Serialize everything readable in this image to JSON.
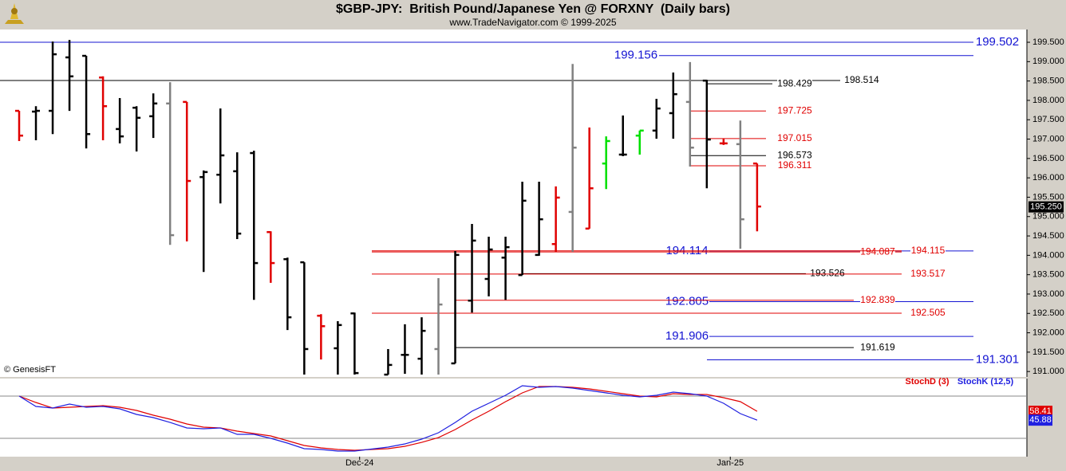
{
  "chart_data": [
    {
      "type": "ohlc",
      "title": "$GBP-JPY:  British Pound/Japanese Yen @ FORXNY  (Daily bars)",
      "subtitle": "www.TradeNavigator.com © 1999-2025",
      "annotation": "© GenesisFT",
      "x": [
        0,
        1,
        2,
        3,
        4,
        5,
        6,
        7,
        8,
        9,
        10,
        11,
        12,
        13,
        14,
        15,
        16,
        17,
        18,
        19,
        20,
        22,
        23,
        24,
        25,
        26,
        27,
        28,
        29,
        30,
        31,
        32,
        33,
        34,
        35,
        36,
        37,
        38,
        39,
        40,
        41,
        42,
        43,
        44
      ],
      "open": [
        197.73,
        197.71,
        197.73,
        199.11,
        199.15,
        198.59,
        197.26,
        197.81,
        197.59,
        197.92,
        197.96,
        196.02,
        196.08,
        196.17,
        196.64,
        194.6,
        193.9,
        193.82,
        192.44,
        191.6,
        192.5,
        190.92,
        191.43,
        191.33,
        191.58,
        191.21,
        192.83,
        193.39,
        193.94,
        193.49,
        194.01,
        194.29,
        195.12,
        194.69,
        196.37,
        196.6,
        197.09,
        197.22,
        197.67,
        197.96,
        198.51,
        196.89,
        196.87,
        196.37
      ],
      "high": [
        197.73,
        197.85,
        199.52,
        199.56,
        199.15,
        198.62,
        198.06,
        197.85,
        198.18,
        198.47,
        197.96,
        196.19,
        197.79,
        196.66,
        196.7,
        194.62,
        193.94,
        193.82,
        192.48,
        192.3,
        192.52,
        191.58,
        192.22,
        192.4,
        193.41,
        194.11,
        194.81,
        194.48,
        194.48,
        195.9,
        195.9,
        195.78,
        198.94,
        197.3,
        197.07,
        197.61,
        197.22,
        198.04,
        198.72,
        198.99,
        198.53,
        197.01,
        197.48,
        196.37
      ],
      "low": [
        196.95,
        196.97,
        197.13,
        197.73,
        196.76,
        196.97,
        196.89,
        196.68,
        197.03,
        194.27,
        194.36,
        193.57,
        195.34,
        194.42,
        192.85,
        193.29,
        192.07,
        190.92,
        191.31,
        190.92,
        190.92,
        190.92,
        190.94,
        190.92,
        190.92,
        191.21,
        192.52,
        192.94,
        192.85,
        193.49,
        193.99,
        194.09,
        194.09,
        194.69,
        195.71,
        196.56,
        196.6,
        197.01,
        197.01,
        196.29,
        195.73,
        196.85,
        194.17,
        194.62
      ],
      "close": [
        197.09,
        197.73,
        199.19,
        198.62,
        197.13,
        197.85,
        197.07,
        197.55,
        197.92,
        194.52,
        195.92,
        196.15,
        196.58,
        194.56,
        193.8,
        193.8,
        192.4,
        191.58,
        192.17,
        192.2,
        190.96,
        191.17,
        191.43,
        192.05,
        192.73,
        194.01,
        194.38,
        194.15,
        194.21,
        195.41,
        194.93,
        195.49,
        196.78,
        195.73,
        196.95,
        196.6,
        197.22,
        197.79,
        198.16,
        196.78,
        196.99,
        196.89,
        194.93,
        195.26
      ],
      "colors": [
        "#e00000",
        "#000000",
        "#000000",
        "#000000",
        "#000000",
        "#e00000",
        "#000000",
        "#000000",
        "#000000",
        "#808080",
        "#e00000",
        "#000000",
        "#000000",
        "#000000",
        "#000000",
        "#e00000",
        "#000000",
        "#000000",
        "#e00000",
        "#000000",
        "#000000",
        "#000000",
        "#000000",
        "#000000",
        "#808080",
        "#000000",
        "#000000",
        "#000000",
        "#000000",
        "#000000",
        "#000000",
        "#e00000",
        "#808080",
        "#e00000",
        "#00e000",
        "#000000",
        "#00e000",
        "#000000",
        "#000000",
        "#808080",
        "#000000",
        "#e00000",
        "#808080",
        "#e00000"
      ],
      "xlim": [
        -1.142,
        60.086
      ],
      "ylim": [
        190.88,
        199.83
      ],
      "yticks": [
        {
          "value": 191,
          "label": "191.000"
        },
        {
          "value": 191.5,
          "label": "191.500"
        },
        {
          "value": 192,
          "label": "192.000"
        },
        {
          "value": 192.5,
          "label": "192.500"
        },
        {
          "value": 193,
          "label": "193.000"
        },
        {
          "value": 193.5,
          "label": "193.500"
        },
        {
          "value": 194,
          "label": "194.000"
        },
        {
          "value": 194.5,
          "label": "194.500"
        },
        {
          "value": 195,
          "label": "195.000"
        },
        {
          "value": 195.5,
          "label": "195.500"
        },
        {
          "value": 196,
          "label": "196.000"
        },
        {
          "value": 196.5,
          "label": "196.500"
        },
        {
          "value": 197,
          "label": "197.000"
        },
        {
          "value": 197.5,
          "label": "197.500"
        },
        {
          "value": 198,
          "label": "198.000"
        },
        {
          "value": 198.5,
          "label": "198.500"
        },
        {
          "value": 199,
          "label": "199.000"
        },
        {
          "value": 199.5,
          "label": "199.500"
        }
      ],
      "last_price": {
        "value": 195.25,
        "label": "195.250"
      },
      "levels": [
        {
          "value": 199.502,
          "color": "#1414d2"
        },
        {
          "value": 199.156,
          "color": "#1414d2"
        },
        {
          "value": 198.514,
          "color": "#000000"
        },
        {
          "value": 198.429,
          "color": "#000000"
        },
        {
          "value": 197.725,
          "color": "#e00000"
        },
        {
          "value": 197.015,
          "color": "#e00000"
        },
        {
          "value": 196.573,
          "color": "#000000"
        },
        {
          "value": 196.311,
          "color": "#e00000"
        },
        {
          "value": 194.114,
          "color": "#1414d2"
        },
        {
          "value": 194.087,
          "color": "#e00000"
        },
        {
          "value": 194.115,
          "color": "#e00000"
        },
        {
          "value": 193.526,
          "color": "#000000"
        },
        {
          "value": 193.517,
          "color": "#e00000"
        },
        {
          "value": 192.805,
          "color": "#1414d2"
        },
        {
          "value": 192.839,
          "color": "#e00000"
        },
        {
          "value": 192.505,
          "color": "#e00000"
        },
        {
          "value": 191.906,
          "color": "#1414d2"
        },
        {
          "value": 191.619,
          "color": "#000000"
        },
        {
          "value": 191.301,
          "color": "#1414d2"
        }
      ]
    },
    {
      "type": "line",
      "x": [
        0,
        1,
        2,
        3,
        4,
        5,
        6,
        7,
        8,
        9,
        10,
        11,
        12,
        13,
        14,
        15,
        16,
        17,
        18,
        19,
        20,
        22,
        23,
        24,
        25,
        26,
        27,
        28,
        29,
        30,
        31,
        32,
        33,
        34,
        35,
        36,
        37,
        38,
        39,
        40,
        41,
        42,
        43,
        44
      ],
      "xlim": [
        -1.142,
        60.086
      ],
      "ylim": [
        -6,
        104.9
      ],
      "hlines": [
        80,
        20
      ],
      "xticks": [
        {
          "value": 20.3,
          "label": "Dec-24"
        },
        {
          "value": 42.4,
          "label": "Jan-25"
        }
      ],
      "series": [
        {
          "name": "StochD (3)",
          "color": "#e00000",
          "values": [
            80.0,
            70.9,
            63.0,
            64.2,
            65.3,
            66.4,
            64.2,
            59.6,
            52.8,
            47.2,
            40.4,
            35.9,
            34.7,
            30.2,
            26.8,
            23.4,
            16.6,
            9.8,
            6.4,
            4.2,
            3.1,
            5.3,
            8.7,
            14.3,
            21.1,
            32.5,
            46.0,
            58.5,
            72.1,
            84.5,
            93.6,
            93.6,
            92.5,
            90.2,
            86.8,
            83.4,
            80.0,
            78.9,
            83.4,
            82.3,
            82.3,
            77.7,
            72.1,
            58.41
          ]
        },
        {
          "name": "StochK (12,5)",
          "color": "#2020e0",
          "values": [
            80.0,
            65.3,
            63.0,
            68.7,
            64.2,
            65.3,
            61.9,
            54.0,
            49.4,
            42.6,
            34.7,
            33.6,
            34.7,
            25.7,
            25.7,
            20.0,
            13.2,
            5.3,
            4.2,
            1.9,
            1.9,
            7.6,
            12.1,
            18.9,
            27.9,
            42.6,
            58.5,
            69.8,
            81.1,
            94.7,
            92.5,
            93.6,
            91.3,
            87.9,
            84.5,
            81.1,
            78.9,
            81.1,
            85.7,
            83.4,
            80.0,
            69.8,
            55.1,
            45.88
          ]
        }
      ]
    }
  ]
}
